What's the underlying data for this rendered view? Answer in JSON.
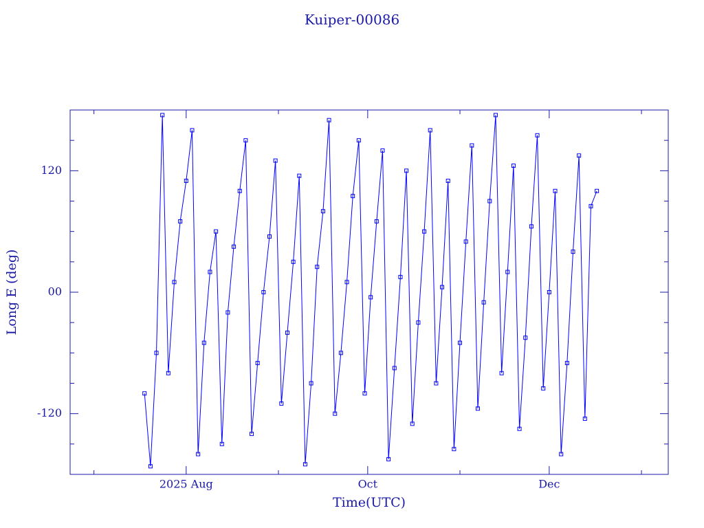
{
  "chart_data": {
    "type": "line",
    "title": "Kuiper-00086",
    "xlabel": "Time(UTC)",
    "ylabel": "Long E (deg)",
    "xlim": [
      173,
      374
    ],
    "xticks": [
      {
        "value": 212,
        "label": "2025 Aug"
      },
      {
        "value": 273,
        "label": "Oct"
      },
      {
        "value": 334,
        "label": "Dec"
      }
    ],
    "minor_xticks": [
      181,
      243,
      304,
      365
    ],
    "ylim": [
      -180,
      180
    ],
    "yticks": [
      -120,
      {
        "value": 0,
        "label": "00"
      },
      120
    ],
    "minor_yticks": [
      -150,
      -90,
      -60,
      -30,
      30,
      60,
      90,
      150
    ],
    "markers": true,
    "series": [
      {
        "name": "Kuiper-00086",
        "color": "#0000ff",
        "x": [
          198,
          200,
          202,
          204,
          206,
          208,
          210,
          212,
          214,
          216,
          218,
          220,
          222,
          224,
          226,
          228,
          230,
          232,
          234,
          236,
          238,
          240,
          242,
          244,
          246,
          248,
          250,
          252,
          254,
          256,
          258,
          260,
          262,
          264,
          266,
          268,
          270,
          272,
          274,
          276,
          278,
          280,
          282,
          284,
          286,
          288,
          290,
          292,
          294,
          296,
          298,
          300,
          302,
          304,
          306,
          308,
          310,
          312,
          314,
          316,
          318,
          320,
          322,
          324,
          326,
          328,
          330,
          332,
          334,
          336,
          338,
          340,
          342,
          344,
          346,
          348,
          350
        ],
        "values": [
          -100,
          -172,
          -60,
          175,
          -80,
          10,
          70,
          110,
          160,
          -160,
          -50,
          20,
          60,
          -150,
          -20,
          45,
          100,
          150,
          -140,
          -70,
          0,
          55,
          130,
          -110,
          -40,
          30,
          115,
          -170,
          -90,
          25,
          80,
          170,
          -120,
          -60,
          10,
          95,
          150,
          -100,
          -5,
          70,
          140,
          -165,
          -75,
          15,
          120,
          -130,
          -30,
          60,
          160,
          -90,
          5,
          110,
          -155,
          -50,
          50,
          145,
          -115,
          -10,
          90,
          175,
          -80,
          20,
          125,
          -135,
          -45,
          65,
          155,
          -95,
          0,
          100,
          -160,
          -70,
          40,
          135,
          -125,
          85,
          100
        ]
      }
    ]
  }
}
